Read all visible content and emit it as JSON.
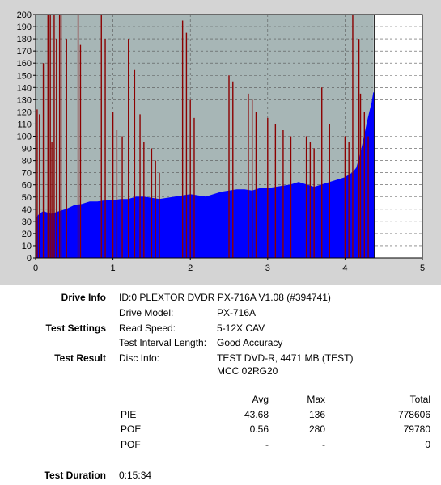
{
  "chart_data": {
    "type": "area",
    "title": "",
    "xlabel": "",
    "ylabel": "",
    "xlim": [
      0,
      5
    ],
    "ylim": [
      0,
      200
    ],
    "x_ticks": [
      0,
      1,
      2,
      3,
      4,
      5
    ],
    "y_ticks": [
      0,
      10,
      20,
      30,
      40,
      50,
      60,
      70,
      80,
      90,
      100,
      110,
      120,
      130,
      140,
      150,
      160,
      170,
      180,
      190,
      200
    ],
    "grid": true,
    "colors": {
      "pie": "#0000ff",
      "poe": "#8b0000",
      "background": "#a7b6b6"
    },
    "series": [
      {
        "values_desc": "PIE",
        "x": [
          0,
          0.05,
          0.1,
          0.2,
          0.3,
          0.4,
          0.5,
          0.6,
          0.7,
          0.8,
          0.9,
          1.0,
          1.1,
          1.2,
          1.3,
          1.4,
          1.5,
          1.6,
          1.7,
          1.8,
          1.9,
          2.0,
          2.1,
          2.2,
          2.3,
          2.4,
          2.5,
          2.6,
          2.7,
          2.8,
          2.9,
          3.0,
          3.1,
          3.2,
          3.3,
          3.4,
          3.5,
          3.6,
          3.7,
          3.8,
          3.9,
          4.0,
          4.1,
          4.15,
          4.2,
          4.25,
          4.3,
          4.35,
          4.37
        ],
        "values": [
          32,
          36,
          38,
          36,
          38,
          40,
          43,
          44,
          46,
          46,
          47,
          47,
          48,
          48,
          50,
          50,
          49,
          48,
          49,
          50,
          51,
          52,
          51,
          50,
          52,
          54,
          55,
          56,
          56,
          55,
          57,
          57,
          58,
          59,
          60,
          62,
          60,
          58,
          60,
          62,
          64,
          66,
          70,
          74,
          85,
          100,
          115,
          128,
          136
        ]
      },
      {
        "values_desc": "POE",
        "x": [
          0.02,
          0.05,
          0.1,
          0.16,
          0.19,
          0.21,
          0.24,
          0.27,
          0.31,
          0.33,
          0.4,
          0.55,
          0.58,
          0.85,
          0.9,
          1.0,
          1.05,
          1.12,
          1.2,
          1.28,
          1.35,
          1.4,
          1.5,
          1.55,
          1.6,
          1.9,
          1.95,
          2.0,
          2.05,
          2.5,
          2.55,
          2.75,
          2.8,
          2.85,
          3.0,
          3.1,
          3.2,
          3.3,
          3.5,
          3.55,
          3.6,
          3.7,
          3.8,
          4.0,
          4.05,
          4.1,
          4.18,
          4.2,
          4.25,
          4.3
        ],
        "values": [
          122,
          118,
          160,
          200,
          200,
          95,
          200,
          180,
          200,
          200,
          180,
          200,
          175,
          200,
          180,
          120,
          105,
          100,
          180,
          155,
          118,
          95,
          90,
          80,
          70,
          195,
          185,
          130,
          115,
          150,
          145,
          135,
          130,
          120,
          115,
          110,
          105,
          100,
          100,
          95,
          90,
          140,
          110,
          100,
          95,
          200,
          180,
          135,
          120,
          100
        ]
      }
    ]
  },
  "info": {
    "drive_info_label": "Drive Info",
    "drive_info_value": "ID:0 PLEXTOR DVDR   PX-716A  V1.08 (#394741)",
    "drive_model_label": "Drive Model:",
    "drive_model_value": "PX-716A",
    "test_settings_label": "Test Settings",
    "read_speed_label": "Read Speed:",
    "read_speed_value": "5-12X CAV",
    "interval_label": "Test Interval Length:",
    "interval_value": "Good Accuracy",
    "test_result_label": "Test Result",
    "disc_info_label": "Disc Info:",
    "disc_info_line1": "TEST DVD-R, 4471 MB (TEST)",
    "disc_info_line2": "MCC 02RG20",
    "duration_label": "Test Duration",
    "duration_value": "0:15:34"
  },
  "results": {
    "headers": {
      "avg": "Avg",
      "max": "Max",
      "total": "Total"
    },
    "rows": [
      {
        "name": "PIE",
        "avg": "43.68",
        "max": "136",
        "total": "778606"
      },
      {
        "name": "POE",
        "avg": "0.56",
        "max": "280",
        "total": "79780"
      },
      {
        "name": "POF",
        "avg": "-",
        "max": "-",
        "total": "0"
      }
    ]
  }
}
